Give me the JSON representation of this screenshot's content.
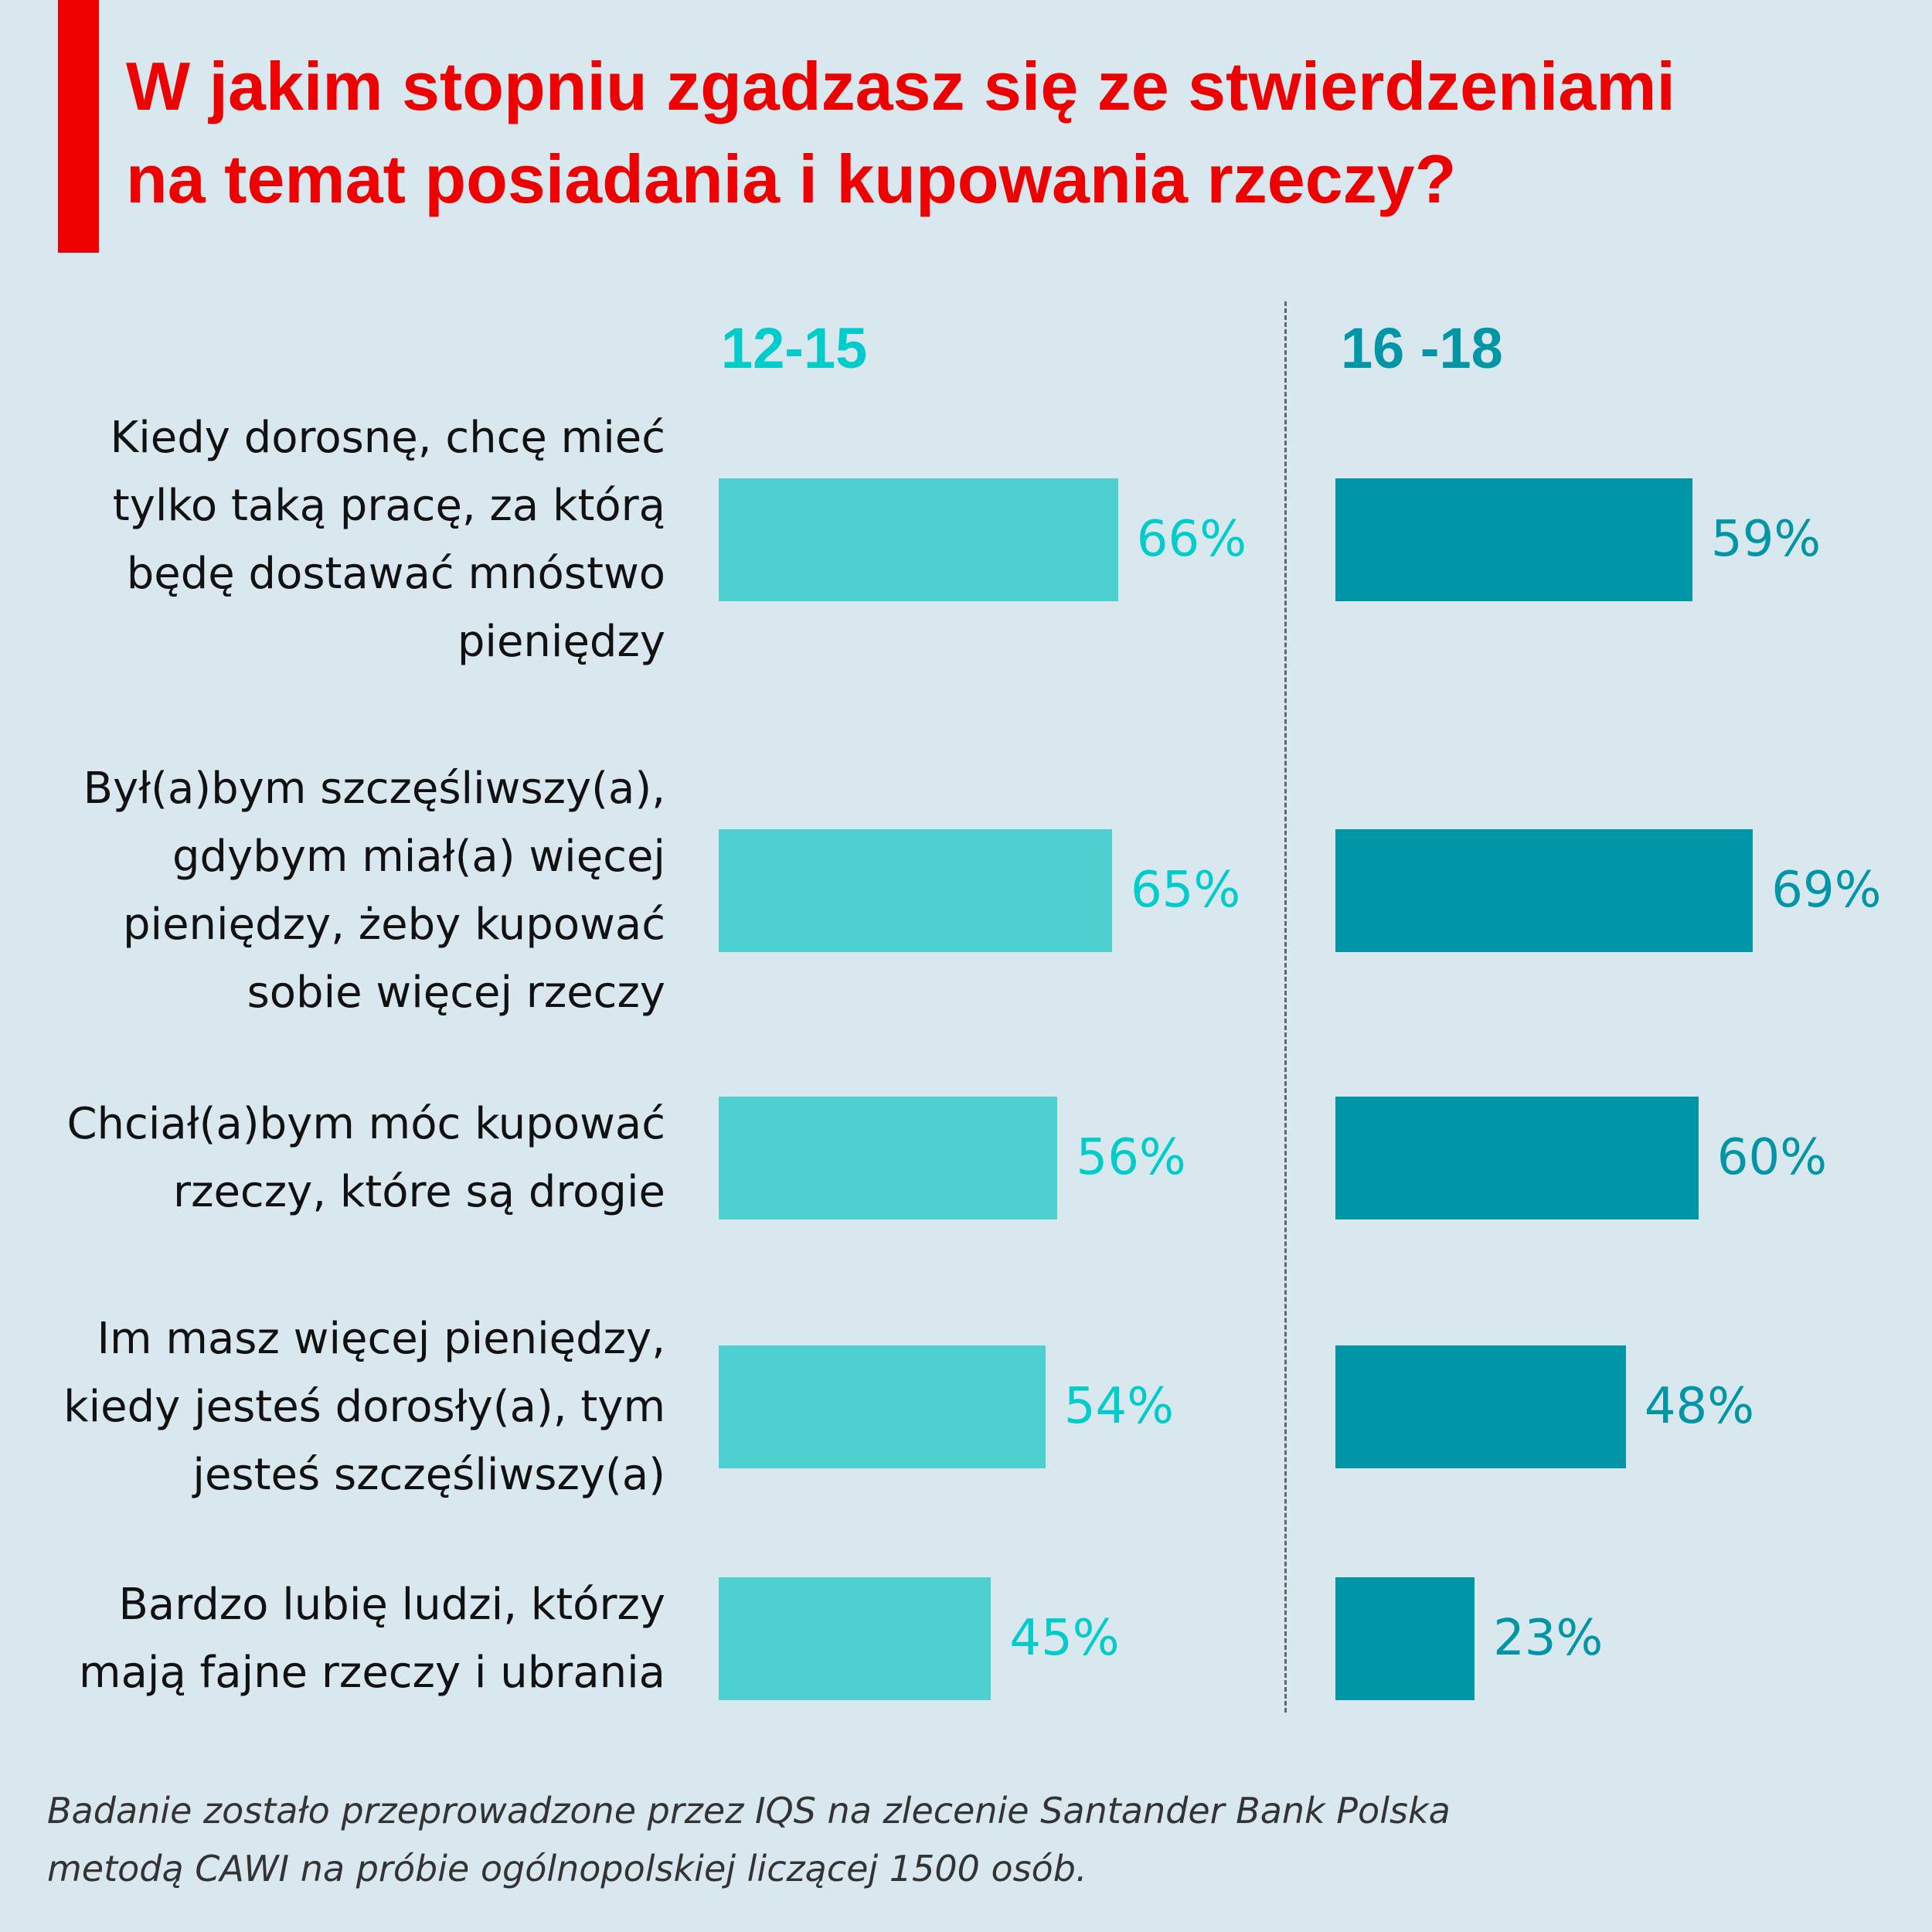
{
  "title_lines": [
    "W jakim stopniu zgadzasz się ze stwierdzeniami",
    "na temat posiadania i kupowania rzeczy?"
  ],
  "colors": {
    "title": "#EE0000",
    "group1": "#4ECFD0",
    "group1_text": "#00CCCC",
    "group2": "#0096A8"
  },
  "chart_data": {
    "type": "bar",
    "orientation": "horizontal",
    "title": "W jakim stopniu zgadzasz się ze stwierdzeniami na temat posiadania i kupowania rzeczy?",
    "categories": [
      [
        "Kiedy dorosnę, chcę mieć",
        "tylko taką pracę, za którą",
        "będę dostawać mnóstwo",
        "pieniędzy"
      ],
      [
        "Był(a)bym szczęśliwszy(a),",
        "gdybym miał(a) więcej",
        "pieniędzy, żeby kupować",
        "sobie więcej rzeczy"
      ],
      [
        "Chciał(a)bym móc kupować",
        "rzeczy, które są drogie"
      ],
      [
        "Im masz więcej pieniędzy,",
        "kiedy jesteś dorosły(a), tym",
        "jesteś szczęśliwszy(a)"
      ],
      [
        "Bardzo lubię ludzi, którzy",
        "mają fajne rzeczy i ubrania"
      ]
    ],
    "series": [
      {
        "name": "12-15",
        "values": [
          66,
          65,
          56,
          54,
          45
        ],
        "labels": [
          "66%",
          "65%",
          "56%",
          "54%",
          "45%"
        ]
      },
      {
        "name": "16 -18",
        "values": [
          59,
          69,
          60,
          48,
          23
        ],
        "labels": [
          "59%",
          "69%",
          "60%",
          "48%",
          "23%"
        ]
      }
    ],
    "grid": false
  },
  "footnote_lines": [
    "Badanie zostało przeprowadzone przez IQS na zlecenie Santander Bank Polska",
    "metodą CAWI na próbie ogólnopolskiej liczącej 1500 osób."
  ]
}
